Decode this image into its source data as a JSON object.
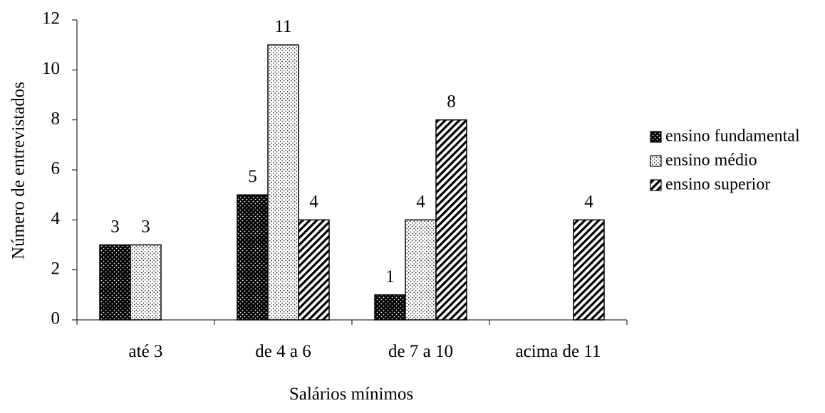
{
  "chart_data": {
    "type": "bar",
    "title": "",
    "xlabel": "Salários mínimos",
    "ylabel": "Número de entrevistados",
    "ylim": [
      0,
      12
    ],
    "yticks": [
      "0",
      "2",
      "4",
      "6",
      "8",
      "10",
      "12"
    ],
    "categories": [
      "até 3",
      "de 4 a 6",
      "de 7 a 10",
      "acima de 11"
    ],
    "series": [
      {
        "name": "ensino fundamental",
        "pattern": "dots-dark",
        "values": [
          3,
          5,
          1,
          null
        ]
      },
      {
        "name": "ensino médio",
        "pattern": "dots-light",
        "values": [
          3,
          11,
          4,
          null
        ]
      },
      {
        "name": "ensino superior",
        "pattern": "diagonal-hatch",
        "values": [
          null,
          4,
          8,
          4
        ]
      }
    ],
    "legend_position": "right",
    "grid": false,
    "colors": {
      "stroke": "#000000",
      "background": "#ffffff"
    }
  }
}
